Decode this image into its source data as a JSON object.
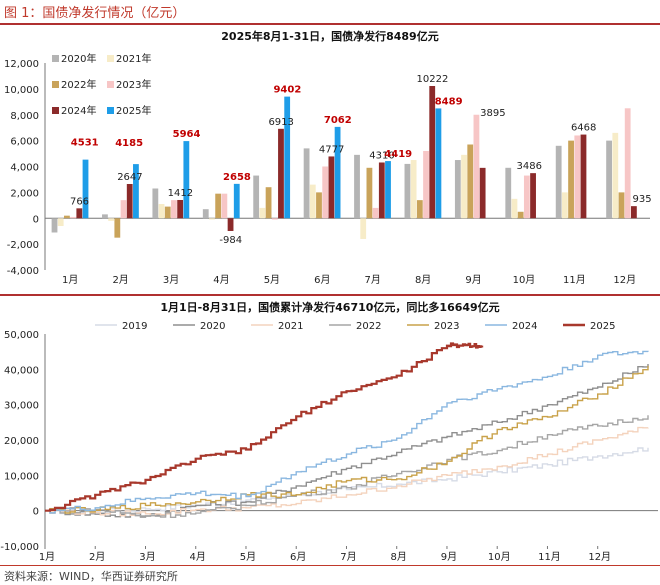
{
  "figure_title": "图 1：国债净发行情况（亿元）",
  "source_note": "资料来源：WIND，华西证券研究所",
  "colors": {
    "s2020": "#b4b4b4",
    "s2021": "#f7ecc8",
    "s2022": "#c9a35a",
    "s2023": "#f7c6c6",
    "s2024": "#8b2a2a",
    "s2025": "#1e9de8",
    "label_red": "#c00000",
    "l2019": "#d6dbe6",
    "l2020": "#8f8f8f",
    "l2021": "#f4d3bd",
    "l2022": "#a6a6a6",
    "l2023": "#c9a24a",
    "l2024": "#8ab7e0",
    "l2025": "#a8382c"
  },
  "chart_data": [
    {
      "type": "bar",
      "title": "2025年8月1-31日，国债净发行8489亿元",
      "categories": [
        "1月",
        "2月",
        "3月",
        "4月",
        "5月",
        "6月",
        "7月",
        "8月",
        "9月",
        "10月",
        "11月",
        "12月"
      ],
      "ylim": [
        -4000,
        12000
      ],
      "yticks": [
        "-4,000",
        "-2,000",
        "0",
        "2,000",
        "4,000",
        "6,000",
        "8,000",
        "10,000",
        "12,000"
      ],
      "legend": [
        "2020年",
        "2021年",
        "2022年",
        "2023年",
        "2024年",
        "2025年"
      ],
      "series": [
        {
          "name": "2020年",
          "values": [
            -1100,
            300,
            2300,
            700,
            3300,
            5400,
            4900,
            4200,
            4500,
            3900,
            5600,
            6000
          ]
        },
        {
          "name": "2021年",
          "values": [
            -600,
            -200,
            1100,
            -100,
            800,
            2600,
            -1600,
            4500,
            4900,
            1500,
            2000,
            6600
          ]
        },
        {
          "name": "2022年",
          "values": [
            200,
            -1500,
            900,
            1900,
            2400,
            2000,
            3900,
            1400,
            5700,
            500,
            6000,
            2000
          ]
        },
        {
          "name": "2023年",
          "values": [
            100,
            1400,
            1400,
            1900,
            -100,
            4000,
            800,
            5200,
            8000,
            3300,
            6400,
            8500
          ]
        },
        {
          "name": "2024年",
          "values": [
            766,
            2647,
            1412,
            -984,
            6913,
            4777,
            4310,
            10222,
            3895,
            3486,
            6468,
            935
          ]
        },
        {
          "name": "2025年",
          "values": [
            4531,
            4185,
            5964,
            2658,
            9402,
            7062,
            4419,
            8489,
            null,
            null,
            null,
            null
          ]
        }
      ],
      "labels_2024": [
        "766",
        "2647",
        "1412",
        "-984",
        "6913",
        "4777",
        "4310",
        "10222",
        "3895",
        "3486",
        "6468",
        "935"
      ],
      "labels_2025": [
        "4531",
        "4185",
        "5964",
        "2658",
        "9402",
        "7062",
        "4419",
        "8489"
      ]
    },
    {
      "type": "line",
      "title": "1月1日-8月31日，国债累计净发行46710亿元，同比多16649亿元",
      "xticks": [
        "1月",
        "2月",
        "3月",
        "4月",
        "5月",
        "6月",
        "7月",
        "8月",
        "9月",
        "10月",
        "11月",
        "12月"
      ],
      "ylim": [
        -10000,
        50000
      ],
      "yticks": [
        "-10,000",
        "0",
        "10,000",
        "20,000",
        "30,000",
        "40,000",
        "50,000"
      ],
      "legend": [
        "2019",
        "2020",
        "2021",
        "2022",
        "2023",
        "2024",
        "2025"
      ],
      "series": [
        {
          "name": "2019",
          "x": [
            0,
            1,
            2,
            3,
            4,
            5,
            6,
            7,
            8,
            9,
            10,
            11,
            12
          ],
          "values": [
            0,
            -300,
            500,
            1500,
            3000,
            4500,
            6000,
            7500,
            9000,
            11000,
            13000,
            15500,
            17800
          ]
        },
        {
          "name": "2020",
          "x": [
            0,
            1,
            2,
            3,
            4,
            5,
            6,
            7,
            8,
            9,
            10,
            11,
            12
          ],
          "values": [
            0,
            -1000,
            -1500,
            1500,
            2500,
            7000,
            12000,
            16500,
            21000,
            25000,
            30000,
            35000,
            41500
          ]
        },
        {
          "name": "2021",
          "x": [
            0,
            1,
            2,
            3,
            4,
            5,
            6,
            7,
            8,
            9,
            10,
            11,
            12
          ],
          "values": [
            0,
            -500,
            -900,
            300,
            800,
            2000,
            4500,
            7000,
            10000,
            12500,
            16000,
            20000,
            23500
          ]
        },
        {
          "name": "2022",
          "x": [
            0,
            1,
            2,
            3,
            4,
            5,
            6,
            7,
            8,
            9,
            10,
            11,
            12
          ],
          "values": [
            0,
            300,
            -1500,
            -700,
            1500,
            4500,
            6500,
            10500,
            14500,
            17000,
            21500,
            24000,
            27000
          ]
        },
        {
          "name": "2023",
          "x": [
            0,
            1,
            2,
            3,
            4,
            5,
            6,
            7,
            8,
            9,
            10,
            11,
            12
          ],
          "values": [
            0,
            100,
            1500,
            2500,
            4500,
            4500,
            8500,
            9000,
            14000,
            23000,
            26500,
            33000,
            41000
          ]
        },
        {
          "name": "2024",
          "x": [
            0,
            1,
            2,
            3,
            4,
            5,
            6,
            7,
            8,
            9,
            10,
            11,
            12
          ],
          "values": [
            0,
            800,
            3500,
            5000,
            4000,
            11000,
            16000,
            20500,
            30500,
            34500,
            38000,
            44000,
            45000
          ]
        },
        {
          "name": "2025",
          "x": [
            0,
            1,
            2,
            3,
            4,
            5,
            6,
            7,
            8,
            8.4,
            8.7
          ],
          "values": [
            0,
            4500,
            8700,
            14700,
            17300,
            26700,
            33800,
            38200,
            46700,
            46900,
            46710
          ]
        }
      ]
    }
  ]
}
